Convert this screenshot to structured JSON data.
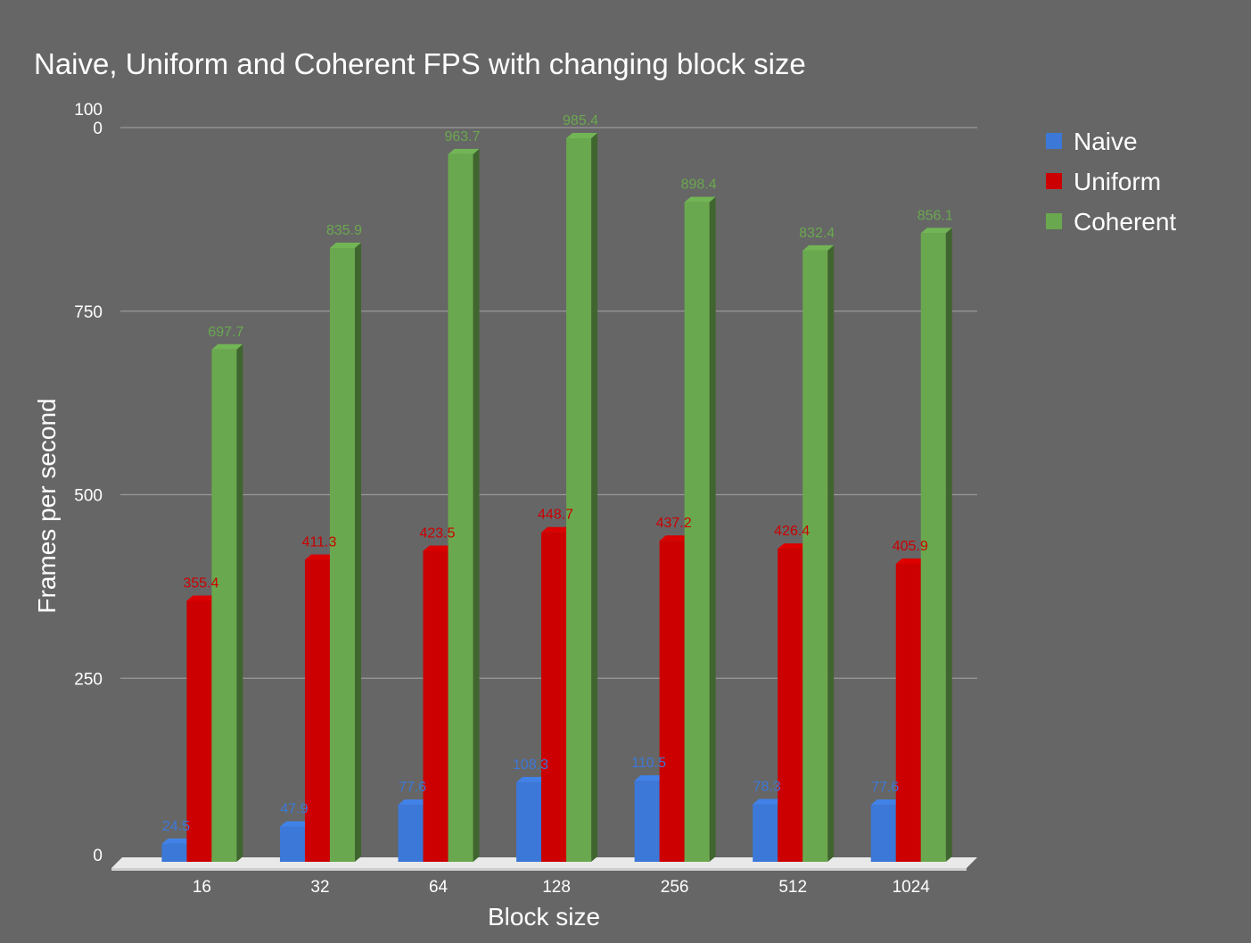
{
  "chart_data": {
    "type": "bar",
    "title": "Naive, Uniform and Coherent FPS with changing block size",
    "xlabel": "Block size",
    "ylabel": "Frames per second",
    "categories": [
      "16",
      "32",
      "64",
      "128",
      "256",
      "512",
      "1024"
    ],
    "ylim": [
      0,
      1000
    ],
    "yticks": [
      0,
      250,
      500,
      750,
      1000
    ],
    "ytick_labels": [
      "0",
      "250",
      "500",
      "750",
      "100\n0"
    ],
    "grid": true,
    "legend_position": "right",
    "series": [
      {
        "name": "Naive",
        "color": "#3c78d8",
        "values": [
          24.5,
          47.9,
          77.6,
          108.3,
          110.5,
          78.3,
          77.6
        ],
        "labels": [
          "24.5",
          "47.9",
          "77.6",
          "108.3",
          "110.5",
          "78.3",
          "77.6"
        ]
      },
      {
        "name": "Uniform",
        "color": "#cc0000",
        "values": [
          355.4,
          411.3,
          423.5,
          448.7,
          437.2,
          426.4,
          405.9
        ],
        "labels": [
          "355.4",
          "411.3",
          "423.5",
          "448.7",
          "437.2",
          "426.4",
          "405.9"
        ]
      },
      {
        "name": "Coherent",
        "color": "#6aa84f",
        "values": [
          697.7,
          835.9,
          963.7,
          985.4,
          898.4,
          832.4,
          856.1
        ],
        "labels": [
          "697.7",
          "835.9",
          "963.7",
          "985.4",
          "898.4",
          "832.4",
          "856.1"
        ]
      }
    ]
  }
}
